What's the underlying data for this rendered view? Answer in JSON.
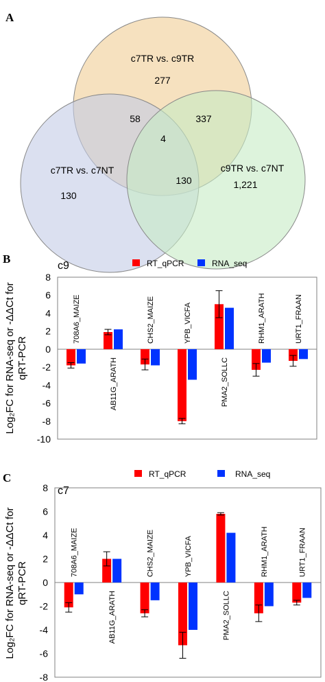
{
  "venn": {
    "panel_label": "A",
    "sets": [
      {
        "name": "c7TR vs. c9TR",
        "color": "#f5dcb4"
      },
      {
        "name": "c7TR vs. c7NT",
        "color": "#c3cbe6"
      },
      {
        "name": "c9TR vs. c7NT",
        "color": "#c7ebc5"
      }
    ],
    "regions": {
      "top_only": "277",
      "left_only": "130",
      "right_only": "1,221",
      "top_left": "58",
      "top_right": "337",
      "left_right": "130",
      "all": "4"
    }
  },
  "legend": {
    "series1": "RT_qPCR",
    "series2": "RNA_seq"
  },
  "colors": {
    "rt_qpcr": "#ff0000",
    "rna_seq": "#0033ff"
  },
  "ylabel_line1": "Log₂FC for RNA-seq or -ΔΔCt for",
  "ylabel_line2": "qRT-PCR",
  "chart_data": [
    {
      "panel_label": "B",
      "type": "bar",
      "title": "c9",
      "categories": [
        "708A6_MAIZE",
        "AB11G_ARATH",
        "CHS2_MAIZE",
        "YPB_VICFA",
        "PMA2_SOLLC",
        "RHM1_ARATH",
        "URT1_FRAAN"
      ],
      "series": [
        {
          "name": "RT_qPCR",
          "values": [
            -1.8,
            1.9,
            -1.7,
            -8.0,
            5.0,
            -2.3,
            -1.3
          ],
          "errors": [
            0.3,
            0.3,
            0.6,
            0.3,
            1.5,
            0.7,
            0.6
          ]
        },
        {
          "name": "RNA_seq",
          "values": [
            -1.6,
            2.2,
            -1.8,
            -3.4,
            4.6,
            -1.5,
            -1.1
          ]
        }
      ],
      "ylim": [
        -10,
        8
      ],
      "yticks": [
        "8",
        "6",
        "4",
        "2",
        "0",
        "-2",
        "-4",
        "-6",
        "-8",
        "-10"
      ],
      "legend_position": "top",
      "grid": false
    },
    {
      "panel_label": "C",
      "type": "bar",
      "title": "c7",
      "categories": [
        "708A6_MAIZE",
        "AB11G_ARATH",
        "CHS2_MAIZE",
        "YPB_VICFA",
        "PMA2_SOLLC",
        "RHM1_ARATH",
        "URT1_FRAAN"
      ],
      "series": [
        {
          "name": "RT_qPCR",
          "values": [
            -2.1,
            2.0,
            -2.6,
            -5.3,
            5.8,
            -2.6,
            -1.7
          ],
          "errors": [
            0.4,
            0.6,
            0.3,
            1.1,
            0.1,
            0.7,
            0.2
          ]
        },
        {
          "name": "RNA_seq",
          "values": [
            -1.0,
            2.0,
            -1.5,
            -4.0,
            4.2,
            -2.0,
            -1.3
          ]
        }
      ],
      "ylim": [
        -8,
        8
      ],
      "yticks": [
        "8",
        "6",
        "4",
        "2",
        "0",
        "-2",
        "-4",
        "-6",
        "-8"
      ],
      "legend_position": "top",
      "grid": false
    }
  ]
}
